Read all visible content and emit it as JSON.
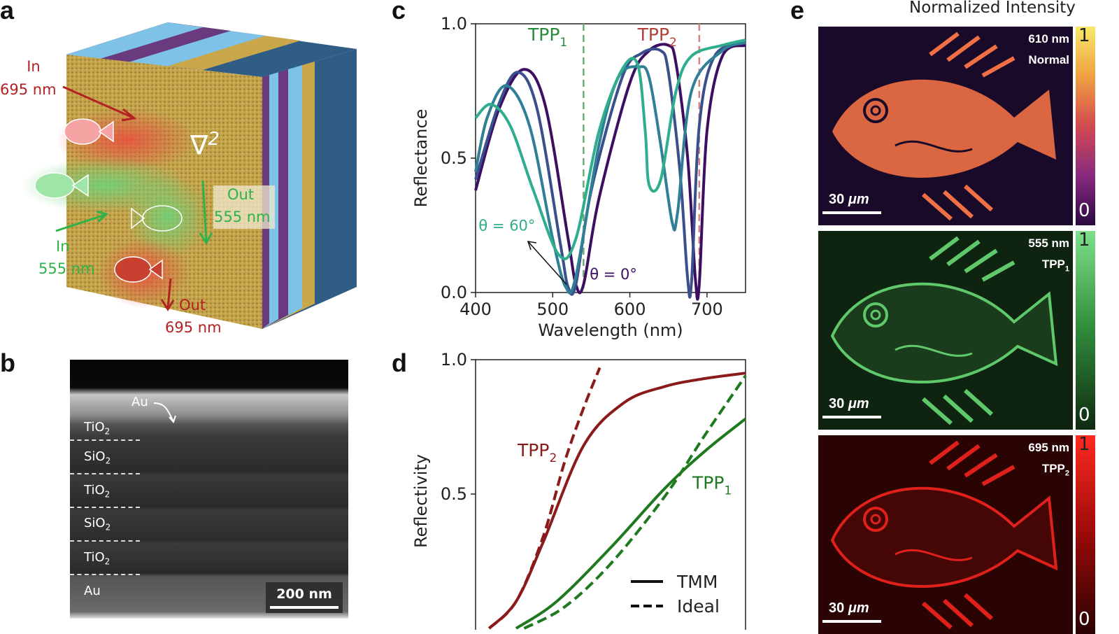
{
  "panels": {
    "a": "a",
    "b": "b",
    "c": "c",
    "d": "d",
    "e": "e"
  },
  "panel_a": {
    "in695": "In",
    "in695_wl": "695 nm",
    "in555": "In",
    "in555_wl": "555 nm",
    "out555": "Out",
    "out555_wl": "555 nm",
    "out695": "Out",
    "out695_wl": "695 nm",
    "nabla": "∇",
    "nabla_sup": "2",
    "colors": {
      "gold": "#c9a74a",
      "purple": "#6a3a7e",
      "lightblue": "#7ec2e8",
      "navy": "#2f5d86",
      "red": "#b22222",
      "green": "#2eb34a"
    }
  },
  "panel_b": {
    "layers": [
      "TiO",
      "SiO",
      "TiO",
      "SiO",
      "TiO",
      "Au"
    ],
    "layer_subs": [
      "2",
      "2",
      "2",
      "2",
      "2",
      ""
    ],
    "au_label": "Au",
    "scalebar": "200 nm"
  },
  "panel_c": {
    "chart_data": {
      "type": "line",
      "xlabel": "Wavelength (nm)",
      "ylabel": "Reflectance",
      "xlim": [
        400,
        750
      ],
      "ylim": [
        0,
        1
      ],
      "xticks": [
        400,
        500,
        600,
        700
      ],
      "yticks": [
        0.0,
        0.5,
        1.0
      ],
      "ytick_labels": [
        "0.0",
        "0.5",
        "1.0"
      ],
      "annotations": {
        "tpp1": "TPP",
        "tpp1_sub": "1",
        "tpp2": "TPP",
        "tpp2_sub": "2",
        "theta60": "θ = 60°",
        "theta0": "θ = 0°"
      },
      "vlines": [
        {
          "x": 540,
          "color": "#6aaa72"
        },
        {
          "x": 690,
          "color": "#d98080"
        }
      ],
      "series": [
        {
          "color": "#3c0f62",
          "x": [
            400,
            430,
            462,
            490,
            520,
            530,
            540,
            560,
            600,
            625,
            650,
            660,
            675,
            685,
            690,
            700,
            720,
            750
          ],
          "y": [
            0.38,
            0.68,
            0.83,
            0.7,
            0.2,
            0.03,
            0.03,
            0.35,
            0.78,
            0.9,
            0.92,
            0.85,
            0.5,
            0.05,
            0.03,
            0.6,
            0.88,
            0.92
          ]
        },
        {
          "color": "#3a4f8c",
          "x": [
            400,
            430,
            455,
            480,
            510,
            520,
            530,
            550,
            590,
            615,
            640,
            650,
            665,
            675,
            680,
            690,
            710,
            750
          ],
          "y": [
            0.42,
            0.7,
            0.82,
            0.68,
            0.18,
            0.02,
            0.03,
            0.38,
            0.8,
            0.89,
            0.9,
            0.82,
            0.45,
            0.05,
            0.04,
            0.62,
            0.88,
            0.93
          ]
        },
        {
          "color": "#2f7f96",
          "x": [
            400,
            415,
            440,
            470,
            500,
            517,
            530,
            560,
            585,
            612,
            625,
            640,
            655,
            662,
            680,
            720,
            750
          ],
          "y": [
            0.45,
            0.65,
            0.77,
            0.62,
            0.2,
            0.02,
            0.06,
            0.55,
            0.8,
            0.84,
            0.8,
            0.55,
            0.26,
            0.3,
            0.75,
            0.9,
            0.93
          ]
        },
        {
          "color": "#2eae8e",
          "x": [
            400,
            420,
            445,
            475,
            508,
            530,
            560,
            590,
            610,
            620,
            625,
            640,
            660,
            680,
            720,
            750
          ],
          "y": [
            0.65,
            0.7,
            0.62,
            0.38,
            0.14,
            0.2,
            0.6,
            0.83,
            0.85,
            0.6,
            0.4,
            0.42,
            0.75,
            0.88,
            0.92,
            0.94
          ]
        }
      ]
    }
  },
  "panel_d": {
    "chart_data": {
      "type": "line",
      "ylabel": "Reflectivity",
      "ylim": [
        0,
        1
      ],
      "yticks": [
        0.5,
        1.0
      ],
      "ytick_labels": [
        "0.5",
        "1.0"
      ],
      "annotations": {
        "tpp2": "TPP",
        "tpp2_sub": "2",
        "tpp1": "TPP",
        "tpp1_sub": "1"
      },
      "legend": {
        "solid": "TMM",
        "dashed": "Ideal",
        "placement": "bottom-right"
      },
      "series": [
        {
          "name": "TPP2 TMM",
          "color": "#8b1a1a",
          "style": "solid",
          "x": [
            0.05,
            0.15,
            0.25,
            0.4,
            0.55,
            0.7,
            0.85,
            1.0
          ],
          "y": [
            0.0,
            0.1,
            0.32,
            0.68,
            0.84,
            0.9,
            0.93,
            0.95
          ]
        },
        {
          "name": "TPP2 Ideal",
          "color": "#8b1a1a",
          "style": "dashed",
          "x": [
            0.05,
            0.15,
            0.25,
            0.33,
            0.4,
            0.46
          ],
          "y": [
            0.0,
            0.1,
            0.34,
            0.62,
            0.82,
            0.97
          ]
        },
        {
          "name": "TPP1 TMM",
          "color": "#1f7a1f",
          "style": "solid",
          "x": [
            0.15,
            0.3,
            0.5,
            0.7,
            0.85,
            1.0
          ],
          "y": [
            0.0,
            0.1,
            0.3,
            0.52,
            0.66,
            0.78
          ]
        },
        {
          "name": "TPP1 Ideal",
          "color": "#1f7a1f",
          "style": "dashed",
          "x": [
            0.18,
            0.33,
            0.5,
            0.7,
            0.85,
            1.0
          ],
          "y": [
            0.0,
            0.08,
            0.24,
            0.49,
            0.72,
            0.94
          ]
        }
      ]
    }
  },
  "panel_e": {
    "title": "Normalized Intensity",
    "images": [
      {
        "wl": "610 nm",
        "mode": "Normal",
        "mode_sub": "",
        "scalebar": "30",
        "unit": "μm",
        "cbar_max": "1",
        "cbar_min": "0",
        "bg": "#1a0a2a",
        "fg": "#f07045"
      },
      {
        "wl": "555 nm",
        "mode": "TPP",
        "mode_sub": "1",
        "scalebar": "30",
        "unit": "μm",
        "cbar_max": "1",
        "cbar_min": "0",
        "bg": "#0f2410",
        "fg": "#5ec86a"
      },
      {
        "wl": "695 nm",
        "mode": "TPP",
        "mode_sub": "2",
        "scalebar": "30",
        "unit": "μm",
        "cbar_max": "1",
        "cbar_min": "0",
        "bg": "#2a0303",
        "fg": "#e0201a"
      }
    ]
  }
}
